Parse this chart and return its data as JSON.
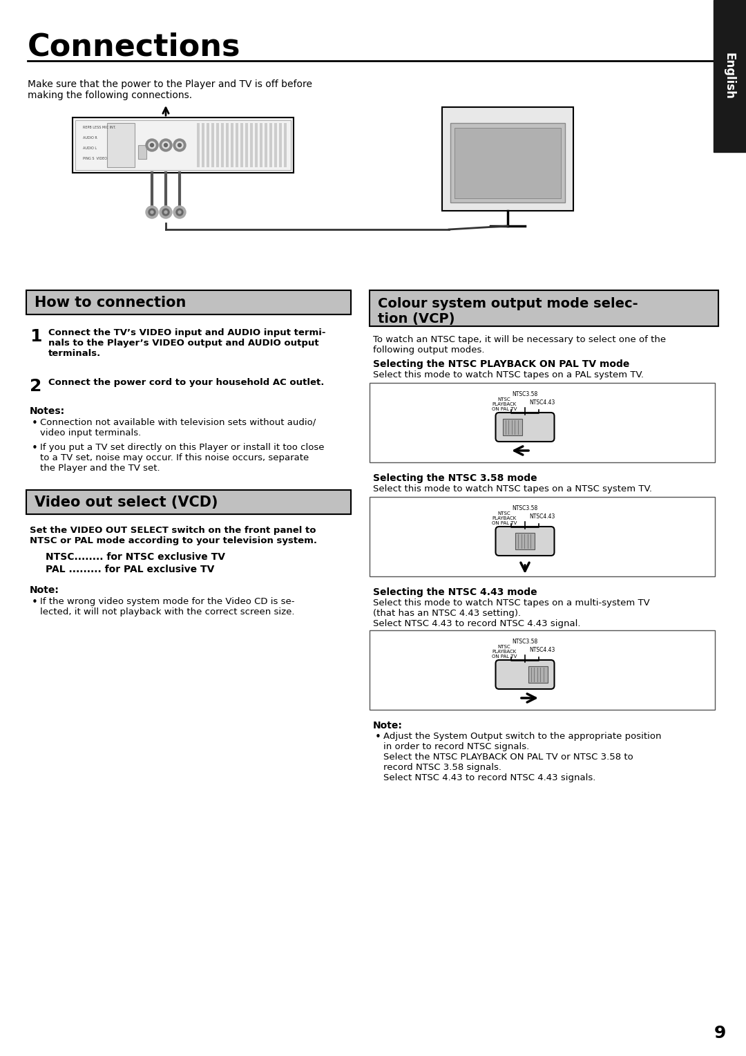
{
  "title": "Connections",
  "page_number": "9",
  "sidebar_text": "English",
  "bg_color": "#ffffff",
  "sidebar_color": "#1a1a1a",
  "intro_text": "Make sure that the power to the Player and TV is off before\nmaking the following connections.",
  "left_section1_title": "How to connection",
  "section_header_bg": "#c0c0c0",
  "left_s1_items": [
    {
      "num": "1",
      "text": "Connect the TV’s VIDEO input and AUDIO input termi-\nnals to the Player’s VIDEO output and AUDIO output\nterminals."
    },
    {
      "num": "2",
      "text": "Connect the power cord to your household AC outlet."
    }
  ],
  "left_s1_notes_title": "Notes:",
  "left_s1_notes": [
    "Connection not available with television sets without audio/\nvideo input terminals.",
    "If you put a TV set directly on this Player or install it too close\nto a TV set, noise may occur. If this noise occurs, separate\nthe Player and the TV set."
  ],
  "left_section2_title": "Video out select (VCD)",
  "left_s2_bold_text": "Set the VIDEO OUT SELECT switch on the front panel to\nNTSC or PAL mode according to your television system.",
  "left_s2_items": [
    "NTSC........ for NTSC exclusive TV",
    "PAL ......... for PAL exclusive TV"
  ],
  "left_s2_note_title": "Note:",
  "left_s2_note": "If the wrong video system mode for the Video CD is se-\nlected, it will not playback with the correct screen size.",
  "right_section_title": "Colour system output mode selec-\ntion (VCP)",
  "right_intro": "To watch an NTSC tape, it will be necessary to select one of the\nfollowing output modes.",
  "right_subsections": [
    {
      "title": "Selecting the NTSC PLAYBACK ON PAL TV mode",
      "desc": "Select this mode to watch NTSC tapes on a PAL system TV.",
      "arrow_dir": "left"
    },
    {
      "title": "Selecting the NTSC 3.58 mode",
      "desc": "Select this mode to watch NTSC tapes on a NTSC system TV.",
      "arrow_dir": "up"
    },
    {
      "title": "Selecting the NTSC 4.43 mode",
      "desc": "Select this mode to watch NTSC tapes on a multi-system TV\n(that has an NTSC 4.43 setting).\nSelect NTSC 4.43 to record NTSC 4.43 signal.",
      "arrow_dir": "right"
    }
  ],
  "right_note_title": "Note:",
  "right_note": "Adjust the System Output switch to the appropriate position\nin order to record NTSC signals.\nSelect the NTSC PLAYBACK ON PAL TV or NTSC 3.58 to\nrecord NTSC 3.58 signals.\nSelect NTSC 4.43 to record NTSC 4.43 signals."
}
